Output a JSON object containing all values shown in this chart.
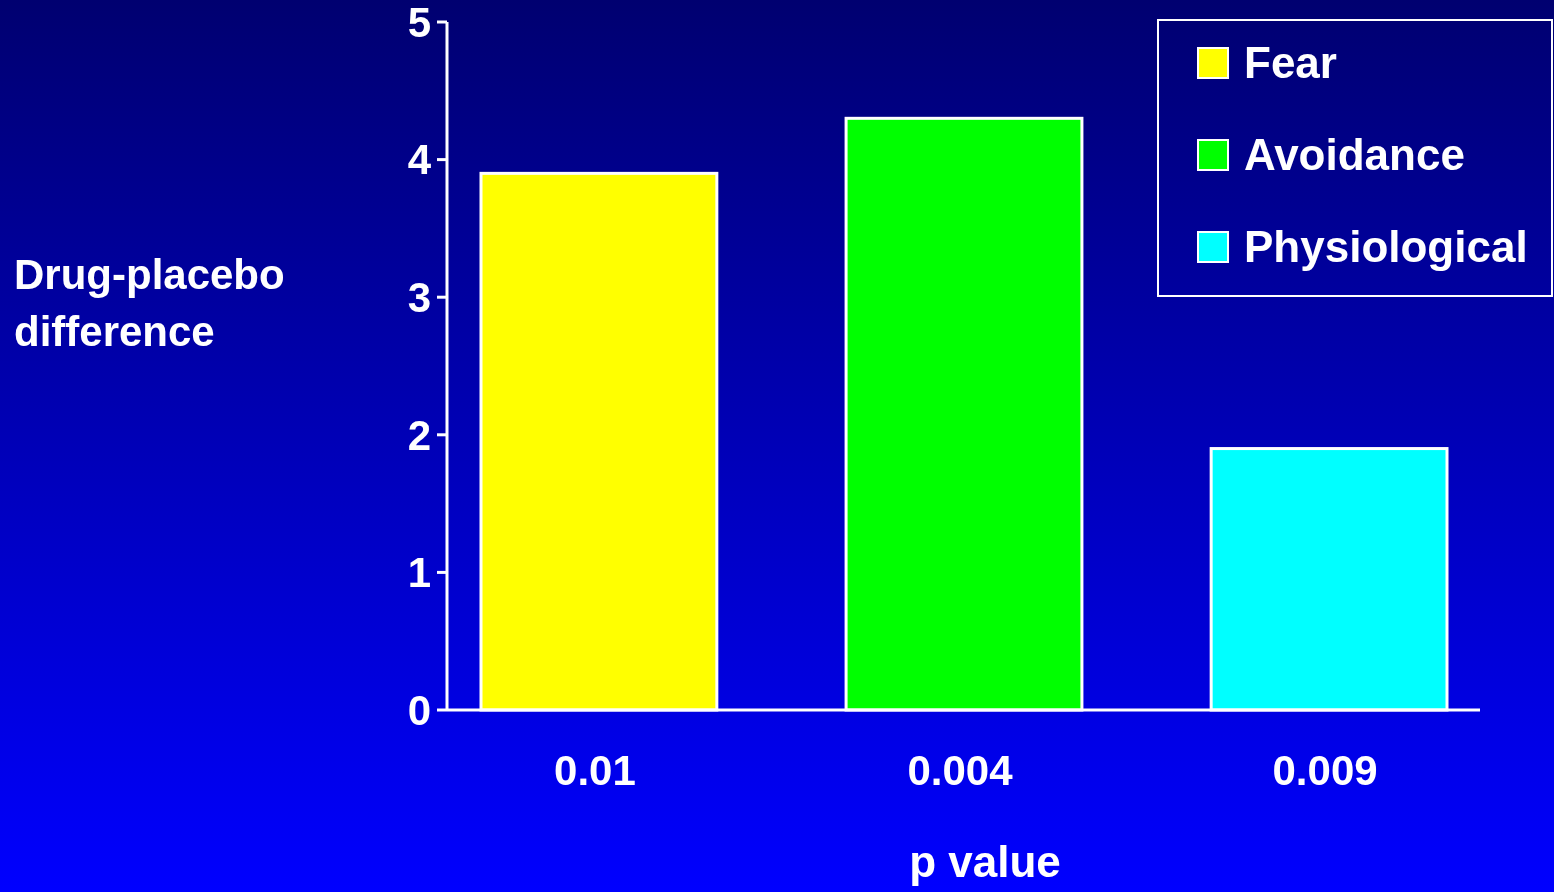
{
  "chart_data": {
    "type": "bar",
    "categories": [
      "0.01",
      "0.004",
      "0.009"
    ],
    "xlabel": "p value",
    "ylabel": "Drug-placebo difference",
    "series": [
      {
        "name": "Fear",
        "color": "#ffff00",
        "values": [
          3.9,
          null,
          null
        ]
      },
      {
        "name": "Avoidance",
        "color": "#00ff00",
        "values": [
          null,
          4.3,
          null
        ]
      },
      {
        "name": "Physiological",
        "color": "#00ffff",
        "values": [
          null,
          null,
          1.9
        ]
      }
    ],
    "ylim": [
      0,
      5
    ],
    "yticks": [
      0,
      1,
      2,
      3,
      4,
      5
    ],
    "grid": false,
    "legend": "top right"
  }
}
